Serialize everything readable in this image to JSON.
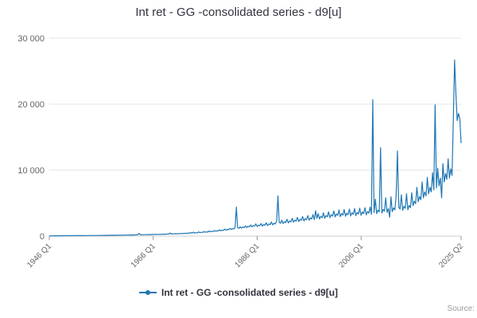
{
  "page": {
    "title": "Int ret - GG -consolidated series - d9[u]"
  },
  "legend": {
    "label": "Int ret - GG -consolidated series - d9[u]"
  },
  "credits": {
    "text": "Source:"
  },
  "chart_data": {
    "type": "line",
    "title": "Int ret - GG -consolidated series - d9[u]",
    "xlabel": "",
    "ylabel": "",
    "frequency": "quarterly",
    "x_range": [
      "1946 Q1",
      "2025 Q2"
    ],
    "ylim": [
      0,
      30000
    ],
    "grid": true,
    "legend_position": "bottom",
    "y_ticks": [
      {
        "value": 0,
        "label": "0"
      },
      {
        "value": 10000,
        "label": "10 000"
      },
      {
        "value": 20000,
        "label": "20 000"
      },
      {
        "value": 30000,
        "label": "30 000"
      }
    ],
    "x_ticks": [
      {
        "index": 0,
        "label": "1946 Q1"
      },
      {
        "index": 80,
        "label": "1966 Q1"
      },
      {
        "index": 160,
        "label": "1986 Q1"
      },
      {
        "index": 240,
        "label": "2006 Q1"
      },
      {
        "index": 317,
        "label": "2025 Q2"
      }
    ],
    "series": [
      {
        "name": "Int ret - GG -consolidated series - d9[u]",
        "color": "#1f77b4",
        "values": [
          40,
          45,
          42,
          50,
          48,
          52,
          50,
          55,
          52,
          58,
          55,
          60,
          58,
          62,
          60,
          66,
          63,
          68,
          65,
          72,
          70,
          75,
          72,
          80,
          76,
          82,
          78,
          86,
          82,
          88,
          84,
          92,
          88,
          95,
          90,
          100,
          95,
          102,
          98,
          108,
          102,
          110,
          105,
          118,
          112,
          120,
          115,
          128,
          120,
          130,
          124,
          138,
          130,
          140,
          134,
          150,
          142,
          152,
          146,
          162,
          155,
          168,
          160,
          178,
          170,
          185,
          176,
          196,
          188,
          420,
          195,
          215,
          205,
          222,
          212,
          235,
          222,
          240,
          230,
          255,
          240,
          260,
          250,
          278,
          260,
          282,
          270,
          300,
          282,
          306,
          292,
          326,
          306,
          470,
          318,
          354,
          332,
          360,
          344,
          384,
          360,
          392,
          374,
          420,
          392,
          428,
          408,
          470,
          430,
          560,
          448,
          600,
          470,
          520,
          500,
          640,
          520,
          580,
          560,
          700,
          580,
          660,
          620,
          780,
          650,
          730,
          690,
          860,
          720,
          810,
          770,
          950,
          800,
          910,
          860,
          1060,
          900,
          1020,
          960,
          1180,
          1000,
          1140,
          1070,
          1300,
          4400,
          1260,
          1180,
          1430,
          1200,
          1380,
          1290,
          1560,
          1300,
          1500,
          1400,
          1700,
          1400,
          1620,
          1510,
          1850,
          1450,
          1680,
          1560,
          1920,
          1520,
          1760,
          1640,
          2030,
          1600,
          1850,
          1730,
          2150,
          1700,
          1960,
          1830,
          2280,
          6100,
          2070,
          1940,
          2420,
          1900,
          2190,
          2050,
          2560,
          2000,
          2300,
          2160,
          2700,
          2100,
          2420,
          2270,
          2840,
          2200,
          2540,
          2380,
          2980,
          2300,
          2650,
          2480,
          3120,
          2400,
          2770,
          2590,
          3260,
          2500,
          3850,
          2700,
          3400,
          2600,
          3000,
          2800,
          3540,
          2700,
          3120,
          2910,
          3680,
          2800,
          3240,
          3020,
          3820,
          2900,
          3360,
          3130,
          3960,
          2950,
          3420,
          3180,
          4030,
          3000,
          3480,
          3240,
          4100,
          3050,
          3540,
          3300,
          4170,
          3100,
          3600,
          3350,
          4240,
          3150,
          3660,
          3410,
          4310,
          3220,
          3740,
          3480,
          4400,
          3300,
          20700,
          3560,
          5600,
          3400,
          3940,
          3670,
          13400,
          3500,
          4050,
          3770,
          5800,
          3600,
          4160,
          2850,
          5950,
          3700,
          4280,
          3980,
          6100,
          12900,
          4400,
          4090,
          6260,
          3900,
          4520,
          4200,
          6420,
          4000,
          4640,
          4310,
          6580,
          4600,
          5300,
          4900,
          7400,
          5200,
          6000,
          5500,
          8200,
          5800,
          6700,
          6100,
          8900,
          6400,
          7400,
          6700,
          9600,
          7000,
          19900,
          7300,
          10300,
          7600,
          8800,
          5800,
          11000,
          8200,
          9500,
          8600,
          11700,
          8800,
          10200,
          9200,
          17500,
          26700,
          21500,
          17500,
          18600,
          17800,
          14100
        ]
      }
    ]
  }
}
